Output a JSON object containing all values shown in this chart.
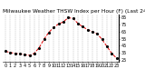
{
  "title": "Milwaukee Weather THSW Index per Hour (F) (Last 24 Hours)",
  "x_values": [
    0,
    1,
    2,
    3,
    4,
    5,
    6,
    7,
    8,
    9,
    10,
    11,
    12,
    13,
    14,
    15,
    16,
    17,
    18,
    19,
    20,
    21,
    22,
    23
  ],
  "y_values": [
    37,
    35,
    34,
    33,
    32,
    31,
    34,
    42,
    54,
    64,
    71,
    76,
    79,
    85,
    84,
    77,
    72,
    68,
    65,
    62,
    54,
    44,
    34,
    27
  ],
  "ylim": [
    22,
    90
  ],
  "xlim": [
    -0.5,
    23.5
  ],
  "yticks": [
    25,
    35,
    45,
    55,
    65,
    75,
    85
  ],
  "ytick_labels": [
    "25",
    "35",
    "45",
    "55",
    "65",
    "75",
    "85"
  ],
  "xticks": [
    0,
    1,
    2,
    3,
    4,
    5,
    6,
    7,
    8,
    9,
    10,
    11,
    12,
    13,
    14,
    15,
    16,
    17,
    18,
    19,
    20,
    21,
    22,
    23
  ],
  "line_color": "#dd0000",
  "marker_color": "#000000",
  "bg_color": "#ffffff",
  "grid_color": "#999999",
  "title_fontsize": 4.2,
  "tick_fontsize": 3.5,
  "line_style": "--",
  "marker_style": ".",
  "marker_size": 2.5,
  "line_width": 0.7
}
